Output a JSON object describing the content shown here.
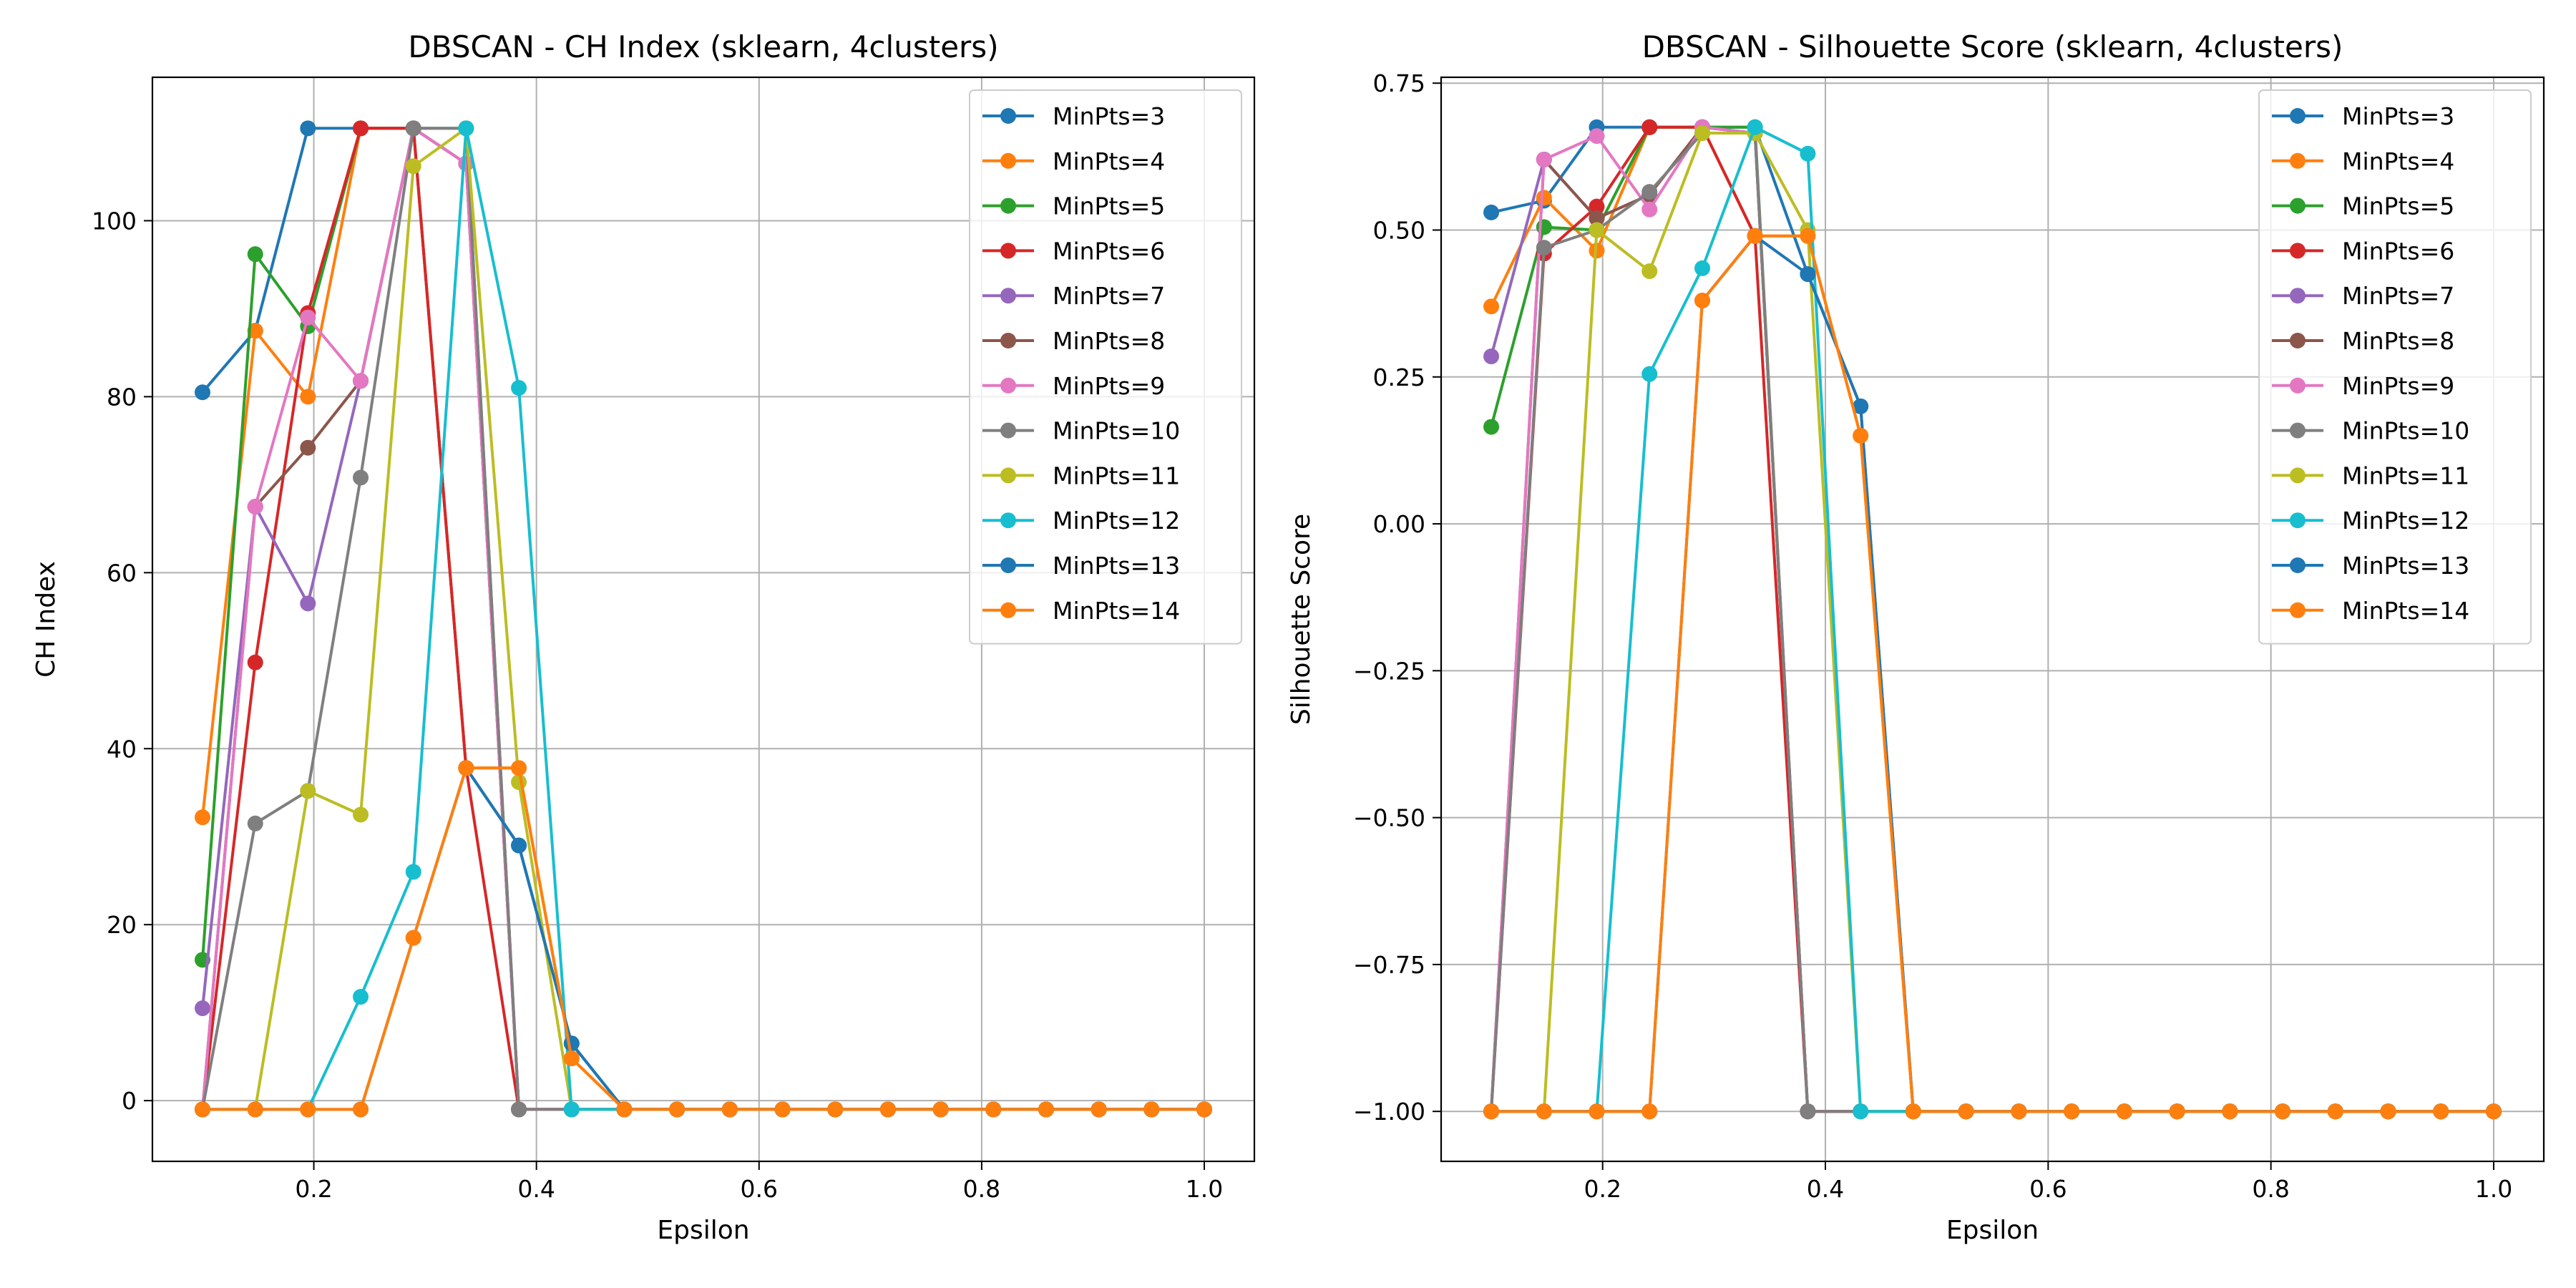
{
  "chart_data": [
    {
      "type": "line",
      "title": "DBSCAN - CH Index (sklearn, 4clusters)",
      "xlabel": "Epsilon",
      "ylabel": "CH Index",
      "xlim": [
        0.055,
        1.045
      ],
      "ylim": [
        -6.9,
        116.3
      ],
      "xticks": [
        0.2,
        0.4,
        0.6,
        0.8,
        1.0
      ],
      "xtick_labels": [
        "0.2",
        "0.4",
        "0.6",
        "0.8",
        "1.0"
      ],
      "yticks": [
        0,
        20,
        40,
        60,
        80,
        100
      ],
      "ytick_labels": [
        "0",
        "20",
        "40",
        "60",
        "80",
        "100"
      ],
      "grid": true,
      "legend_position": "top-right",
      "x": [
        0.1,
        0.1474,
        0.1947,
        0.2421,
        0.2895,
        0.3368,
        0.3842,
        0.4316,
        0.4789,
        0.5263,
        0.5737,
        0.6211,
        0.6684,
        0.7158,
        0.7632,
        0.8105,
        0.8579,
        0.9053,
        0.9526,
        1.0
      ],
      "series": [
        {
          "name": "MinPts=3",
          "color": "#1f77b4",
          "values": [
            80.5,
            87.5,
            110.5,
            110.5,
            110.5,
            37.8,
            29.0,
            6.5,
            -1,
            -1,
            -1,
            -1,
            -1,
            -1,
            -1,
            -1,
            -1,
            -1,
            -1,
            -1
          ]
        },
        {
          "name": "MinPts=4",
          "color": "#ff7f0e",
          "values": [
            32.2,
            87.5,
            80.0,
            110.5,
            110.5,
            37.8,
            37.8,
            4.8,
            -1,
            -1,
            -1,
            -1,
            -1,
            -1,
            -1,
            -1,
            -1,
            -1,
            -1,
            -1
          ]
        },
        {
          "name": "MinPts=5",
          "color": "#2ca02c",
          "values": [
            16.0,
            96.2,
            88.0,
            110.5,
            110.5,
            110.5,
            -1,
            -1,
            -1,
            -1,
            -1,
            -1,
            -1,
            -1,
            -1,
            -1,
            -1,
            -1,
            -1,
            -1
          ]
        },
        {
          "name": "MinPts=6",
          "color": "#d62728",
          "values": [
            -1,
            49.8,
            89.5,
            110.5,
            110.5,
            37.8,
            -1,
            -1,
            -1,
            -1,
            -1,
            -1,
            -1,
            -1,
            -1,
            -1,
            -1,
            -1,
            -1,
            -1
          ]
        },
        {
          "name": "MinPts=7",
          "color": "#9467bd",
          "values": [
            10.5,
            67.5,
            56.5,
            81.8,
            110.5,
            106.5,
            -1,
            -1,
            -1,
            -1,
            -1,
            -1,
            -1,
            -1,
            -1,
            -1,
            -1,
            -1,
            -1,
            -1
          ]
        },
        {
          "name": "MinPts=8",
          "color": "#8c564b",
          "values": [
            -1,
            67.5,
            74.2,
            81.8,
            110.5,
            106.5,
            -1,
            -1,
            -1,
            -1,
            -1,
            -1,
            -1,
            -1,
            -1,
            -1,
            -1,
            -1,
            -1,
            -1
          ]
        },
        {
          "name": "MinPts=9",
          "color": "#e377c2",
          "values": [
            -1,
            67.5,
            89.0,
            81.8,
            110.5,
            106.5,
            -1,
            -1,
            -1,
            -1,
            -1,
            -1,
            -1,
            -1,
            -1,
            -1,
            -1,
            -1,
            -1,
            -1
          ]
        },
        {
          "name": "MinPts=10",
          "color": "#7f7f7f",
          "values": [
            -1,
            31.5,
            35.2,
            70.8,
            110.5,
            110.5,
            -1,
            -1,
            -1,
            -1,
            -1,
            -1,
            -1,
            -1,
            -1,
            -1,
            -1,
            -1,
            -1,
            -1
          ]
        },
        {
          "name": "MinPts=11",
          "color": "#bcbd22",
          "values": [
            -1,
            -1,
            35.2,
            32.5,
            106.2,
            110.5,
            36.2,
            -1,
            -1,
            -1,
            -1,
            -1,
            -1,
            -1,
            -1,
            -1,
            -1,
            -1,
            -1,
            -1
          ]
        },
        {
          "name": "MinPts=12",
          "color": "#17becf",
          "values": [
            -1,
            -1,
            -1,
            11.8,
            26.0,
            110.5,
            81.0,
            -1,
            -1,
            -1,
            -1,
            -1,
            -1,
            -1,
            -1,
            -1,
            -1,
            -1,
            -1,
            -1
          ]
        },
        {
          "name": "MinPts=13",
          "color": "#1f77b4",
          "values": [
            -1,
            -1,
            -1,
            -1,
            18.5,
            37.8,
            29.0,
            6.5,
            -1,
            -1,
            -1,
            -1,
            -1,
            -1,
            -1,
            -1,
            -1,
            -1,
            -1,
            -1
          ]
        },
        {
          "name": "MinPts=14",
          "color": "#ff7f0e",
          "values": [
            -1,
            -1,
            -1,
            -1,
            18.5,
            37.8,
            37.8,
            4.8,
            -1,
            -1,
            -1,
            -1,
            -1,
            -1,
            -1,
            -1,
            -1,
            -1,
            -1,
            -1
          ]
        }
      ]
    },
    {
      "type": "line",
      "title": "DBSCAN - Silhouette Score (sklearn, 4clusters)",
      "xlabel": "Epsilon",
      "ylabel": "Silhouette Score",
      "xlim": [
        0.055,
        1.045
      ],
      "ylim": [
        -1.085,
        0.76
      ],
      "xticks": [
        0.2,
        0.4,
        0.6,
        0.8,
        1.0
      ],
      "xtick_labels": [
        "0.2",
        "0.4",
        "0.6",
        "0.8",
        "1.0"
      ],
      "yticks": [
        -1.0,
        -0.75,
        -0.5,
        -0.25,
        0.0,
        0.25,
        0.5,
        0.75
      ],
      "ytick_labels": [
        "−1.00",
        "−0.75",
        "−0.50",
        "−0.25",
        "0.00",
        "0.25",
        "0.50",
        "0.75"
      ],
      "grid": true,
      "legend_position": "top-right",
      "x": [
        0.1,
        0.1474,
        0.1947,
        0.2421,
        0.2895,
        0.3368,
        0.3842,
        0.4316,
        0.4789,
        0.5263,
        0.5737,
        0.6211,
        0.6684,
        0.7158,
        0.7632,
        0.8105,
        0.8579,
        0.9053,
        0.9526,
        1.0
      ],
      "series": [
        {
          "name": "MinPts=3",
          "color": "#1f77b4",
          "values": [
            0.53,
            0.55,
            0.675,
            0.675,
            0.675,
            0.675,
            0.425,
            0.2,
            -1,
            -1,
            -1,
            -1,
            -1,
            -1,
            -1,
            -1,
            -1,
            -1,
            -1,
            -1
          ]
        },
        {
          "name": "MinPts=4",
          "color": "#ff7f0e",
          "values": [
            0.37,
            0.555,
            0.465,
            0.675,
            0.675,
            0.49,
            0.49,
            0.15,
            -1,
            -1,
            -1,
            -1,
            -1,
            -1,
            -1,
            -1,
            -1,
            -1,
            -1,
            -1
          ]
        },
        {
          "name": "MinPts=5",
          "color": "#2ca02c",
          "values": [
            0.165,
            0.505,
            0.5,
            0.675,
            0.675,
            0.675,
            -1,
            -1,
            -1,
            -1,
            -1,
            -1,
            -1,
            -1,
            -1,
            -1,
            -1,
            -1,
            -1,
            -1
          ]
        },
        {
          "name": "MinPts=6",
          "color": "#d62728",
          "values": [
            -1,
            0.46,
            0.54,
            0.675,
            0.675,
            0.49,
            -1,
            -1,
            -1,
            -1,
            -1,
            -1,
            -1,
            -1,
            -1,
            -1,
            -1,
            -1,
            -1,
            -1
          ]
        },
        {
          "name": "MinPts=7",
          "color": "#9467bd",
          "values": [
            0.285,
            0.62,
            0.52,
            0.56,
            0.675,
            0.665,
            -1,
            -1,
            -1,
            -1,
            -1,
            -1,
            -1,
            -1,
            -1,
            -1,
            -1,
            -1,
            -1,
            -1
          ]
        },
        {
          "name": "MinPts=8",
          "color": "#8c564b",
          "values": [
            -1,
            0.62,
            0.52,
            0.56,
            0.675,
            0.665,
            -1,
            -1,
            -1,
            -1,
            -1,
            -1,
            -1,
            -1,
            -1,
            -1,
            -1,
            -1,
            -1,
            -1
          ]
        },
        {
          "name": "MinPts=9",
          "color": "#e377c2",
          "values": [
            -1,
            0.62,
            0.66,
            0.535,
            0.675,
            0.665,
            -1,
            -1,
            -1,
            -1,
            -1,
            -1,
            -1,
            -1,
            -1,
            -1,
            -1,
            -1,
            -1,
            -1
          ]
        },
        {
          "name": "MinPts=10",
          "color": "#7f7f7f",
          "values": [
            -1,
            0.47,
            0.5,
            0.565,
            0.665,
            0.665,
            -1,
            -1,
            -1,
            -1,
            -1,
            -1,
            -1,
            -1,
            -1,
            -1,
            -1,
            -1,
            -1,
            -1
          ]
        },
        {
          "name": "MinPts=11",
          "color": "#bcbd22",
          "values": [
            -1,
            -1,
            0.5,
            0.43,
            0.665,
            0.665,
            0.5,
            -1,
            -1,
            -1,
            -1,
            -1,
            -1,
            -1,
            -1,
            -1,
            -1,
            -1,
            -1,
            -1
          ]
        },
        {
          "name": "MinPts=12",
          "color": "#17becf",
          "values": [
            -1,
            -1,
            -1,
            0.255,
            0.435,
            0.675,
            0.63,
            -1,
            -1,
            -1,
            -1,
            -1,
            -1,
            -1,
            -1,
            -1,
            -1,
            -1,
            -1,
            -1
          ]
        },
        {
          "name": "MinPts=13",
          "color": "#1f77b4",
          "values": [
            -1,
            -1,
            -1,
            -1,
            0.38,
            0.49,
            0.425,
            0.2,
            -1,
            -1,
            -1,
            -1,
            -1,
            -1,
            -1,
            -1,
            -1,
            -1,
            -1,
            -1
          ]
        },
        {
          "name": "MinPts=14",
          "color": "#ff7f0e",
          "values": [
            -1,
            -1,
            -1,
            -1,
            0.38,
            0.49,
            0.49,
            0.15,
            -1,
            -1,
            -1,
            -1,
            -1,
            -1,
            -1,
            -1,
            -1,
            -1,
            -1,
            -1
          ]
        }
      ]
    }
  ]
}
